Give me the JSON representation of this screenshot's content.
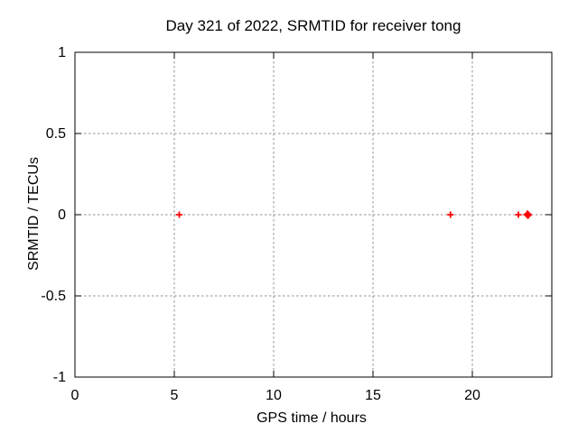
{
  "chart_data": {
    "type": "scatter",
    "title": "Day 321 of 2022, SRMTID for receiver tong",
    "xlabel": "GPS time / hours",
    "ylabel": "SRMTID / TECUs",
    "xlim": [
      0,
      24
    ],
    "ylim": [
      -1,
      1
    ],
    "xticks": {
      "values": [
        0,
        5,
        10,
        15,
        20
      ],
      "labels": [
        "0",
        "5",
        "10",
        "15",
        "20"
      ]
    },
    "yticks": {
      "values": [
        -1,
        -0.5,
        0,
        0.5,
        1
      ],
      "labels": [
        "-1",
        "-0.5",
        "0",
        "0.5",
        "1"
      ]
    },
    "grid": true,
    "legend": "none",
    "marker": "plus",
    "marker_color": "#ff0000",
    "grid_color": "#909090",
    "axis_color": "#000000",
    "background": "#ffffff",
    "series": [
      {
        "name": "",
        "points": [
          [
            5.25,
            0
          ],
          [
            18.9,
            0
          ],
          [
            22.32,
            0
          ],
          [
            22.74,
            0
          ],
          [
            22.78,
            0.007
          ],
          [
            22.8,
            -0.007
          ],
          [
            22.84,
            0
          ]
        ]
      }
    ]
  }
}
